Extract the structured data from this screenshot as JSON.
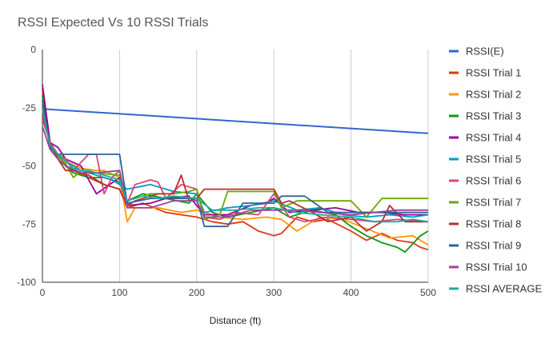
{
  "chart_data": {
    "type": "line",
    "title": "RSSI Expected Vs 10 RSSI Trials",
    "xlabel": "Distance (ft)",
    "ylabel": "",
    "xlim": [
      0,
      500
    ],
    "ylim": [
      -100,
      0
    ],
    "xticks": [
      0,
      100,
      200,
      300,
      400,
      500
    ],
    "yticks": [
      0,
      -25,
      -50,
      -75,
      -100
    ],
    "grid": "vertical",
    "legend_position": "right",
    "series": [
      {
        "name": "RSSI(E)",
        "color": "#3366cc",
        "x": [
          0,
          500
        ],
        "y": [
          -25.5,
          -36
        ]
      },
      {
        "name": "RSSI Trial 1",
        "color": "#dc3912",
        "x": [
          0,
          10,
          20,
          30,
          40,
          60,
          80,
          100,
          110,
          130,
          160,
          180,
          200,
          220,
          240,
          260,
          280,
          300,
          310,
          330,
          350,
          370,
          400,
          420,
          440,
          460,
          480,
          490,
          500
        ],
        "y": [
          -17,
          -40,
          -45,
          -50,
          -52,
          -55,
          -58,
          -60,
          -68,
          -66,
          -70,
          -71,
          -72,
          -74,
          -75,
          -74,
          -78,
          -80,
          -79,
          -72,
          -74,
          -73,
          -78,
          -82,
          -79,
          -82,
          -83,
          -85,
          -86
        ]
      },
      {
        "name": "RSSI Trial 2",
        "color": "#ff9900",
        "x": [
          0,
          10,
          20,
          30,
          50,
          70,
          80,
          100,
          110,
          120,
          150,
          180,
          200,
          230,
          260,
          290,
          310,
          330,
          360,
          390,
          420,
          450,
          480,
          500
        ],
        "y": [
          -22,
          -42,
          -46,
          -48,
          -51,
          -52,
          -52,
          -55,
          -74,
          -68,
          -68,
          -70,
          -69,
          -72,
          -73,
          -72,
          -73,
          -78,
          -72,
          -73,
          -77,
          -81,
          -80,
          -84
        ]
      },
      {
        "name": "RSSI Trial 3",
        "color": "#109618",
        "x": [
          0,
          10,
          20,
          30,
          40,
          60,
          80,
          100,
          110,
          130,
          160,
          190,
          200,
          220,
          240,
          270,
          300,
          320,
          350,
          380,
          400,
          420,
          440,
          460,
          470,
          490,
          500
        ],
        "y": [
          -20,
          -42,
          -45,
          -50,
          -53,
          -55,
          -55,
          -57,
          -65,
          -62,
          -64,
          -66,
          -62,
          -70,
          -72,
          -70,
          -68,
          -72,
          -69,
          -71,
          -76,
          -80,
          -83,
          -85,
          -87,
          -80,
          -78
        ]
      },
      {
        "name": "RSSI Trial 4",
        "color": "#990099",
        "x": [
          0,
          10,
          20,
          30,
          50,
          70,
          100,
          110,
          140,
          160,
          190,
          200,
          210,
          240,
          270,
          290,
          300,
          320,
          350,
          380,
          410,
          440,
          470,
          500
        ],
        "y": [
          -15,
          -40,
          -42,
          -47,
          -50,
          -62,
          -55,
          -67,
          -66,
          -64,
          -63,
          -67,
          -71,
          -71,
          -67,
          -66,
          -64,
          -70,
          -69,
          -68,
          -70,
          -70,
          -71,
          -71
        ]
      },
      {
        "name": "RSSI Trial 5",
        "color": "#0099c6",
        "x": [
          0,
          10,
          20,
          30,
          50,
          70,
          90,
          100,
          110,
          140,
          170,
          200,
          210,
          240,
          270,
          300,
          330,
          360,
          390,
          420,
          450,
          480,
          500
        ],
        "y": [
          -25,
          -42,
          -45,
          -48,
          -52,
          -54,
          -56,
          -58,
          -60,
          -58,
          -61,
          -62,
          -70,
          -68,
          -67,
          -65,
          -69,
          -68,
          -71,
          -72,
          -71,
          -72,
          -71
        ]
      },
      {
        "name": "RSSI Trial 6",
        "color": "#dd4477",
        "x": [
          0,
          10,
          20,
          30,
          40,
          60,
          70,
          80,
          90,
          100,
          110,
          120,
          140,
          150,
          160,
          180,
          200,
          210,
          230,
          250,
          280,
          300,
          320,
          340,
          370,
          400,
          430,
          460,
          500
        ],
        "y": [
          -30,
          -40,
          -45,
          -47,
          -52,
          -45,
          -45,
          -62,
          -55,
          -52,
          -66,
          -58,
          -56,
          -57,
          -64,
          -58,
          -60,
          -72,
          -73,
          -70,
          -71,
          -62,
          -72,
          -74,
          -72,
          -73,
          -74,
          -73,
          -74
        ]
      },
      {
        "name": "RSSI Trial 7",
        "color": "#66aa00",
        "x": [
          0,
          10,
          20,
          30,
          40,
          50,
          70,
          100,
          110,
          140,
          170,
          190,
          200,
          210,
          230,
          240,
          270,
          300,
          310,
          330,
          360,
          400,
          420,
          440,
          460,
          500
        ],
        "y": [
          -25,
          -42,
          -46,
          -49,
          -55,
          -52,
          -53,
          -54,
          -65,
          -62,
          -62,
          -61,
          -60,
          -73,
          -71,
          -61,
          -61,
          -61,
          -68,
          -65,
          -65,
          -65,
          -72,
          -64,
          -64,
          -64
        ]
      },
      {
        "name": "RSSI Trial 8",
        "color": "#b82e2e",
        "x": [
          0,
          10,
          20,
          30,
          40,
          60,
          80,
          100,
          110,
          120,
          150,
          170,
          180,
          190,
          200,
          210,
          240,
          260,
          300,
          310,
          320,
          350,
          370,
          400,
          420,
          440,
          450,
          470,
          500
        ],
        "y": [
          -28,
          -40,
          -47,
          -52,
          -52,
          -54,
          -58,
          -60,
          -67,
          -65,
          -62,
          -62,
          -54,
          -65,
          -64,
          -60,
          -60,
          -60,
          -60,
          -66,
          -65,
          -70,
          -74,
          -72,
          -78,
          -74,
          -67,
          -74,
          -74
        ]
      },
      {
        "name": "RSSI Trial 9",
        "color": "#316395",
        "x": [
          0,
          10,
          20,
          30,
          40,
          50,
          60,
          80,
          100,
          110,
          140,
          170,
          200,
          210,
          240,
          260,
          280,
          300,
          310,
          340,
          370,
          400,
          430,
          460,
          500
        ],
        "y": [
          -22,
          -42,
          -45,
          -45,
          -45,
          -45,
          -45,
          -45,
          -45,
          -66,
          -64,
          -64,
          -64,
          -76,
          -76,
          -66,
          -66,
          -66,
          -63,
          -63,
          -70,
          -70,
          -70,
          -70,
          -70
        ]
      },
      {
        "name": "RSSI Trial 10",
        "color": "#994499",
        "x": [
          0,
          10,
          20,
          30,
          50,
          70,
          100,
          110,
          140,
          170,
          200,
          210,
          240,
          270,
          300,
          330,
          360,
          400,
          430,
          460,
          500
        ],
        "y": [
          -33,
          -43,
          -47,
          -50,
          -53,
          -53,
          -52,
          -68,
          -68,
          -65,
          -65,
          -72,
          -72,
          -69,
          -69,
          -69,
          -70,
          -71,
          -70,
          -69,
          -69
        ]
      },
      {
        "name": "RSSI AVERAGE",
        "color": "#22aa99",
        "x": [
          0,
          10,
          20,
          30,
          40,
          50,
          60,
          80,
          100,
          110,
          130,
          150,
          170,
          200,
          220,
          250,
          280,
          300,
          330,
          360,
          400,
          430,
          460,
          480,
          500
        ],
        "y": [
          -26,
          -41,
          -45,
          -48,
          -51,
          -52,
          -52,
          -54,
          -56,
          -65,
          -63,
          -64,
          -63,
          -64,
          -69,
          -69,
          -68,
          -68,
          -70,
          -71,
          -72,
          -74,
          -74,
          -73,
          -74
        ]
      }
    ]
  }
}
